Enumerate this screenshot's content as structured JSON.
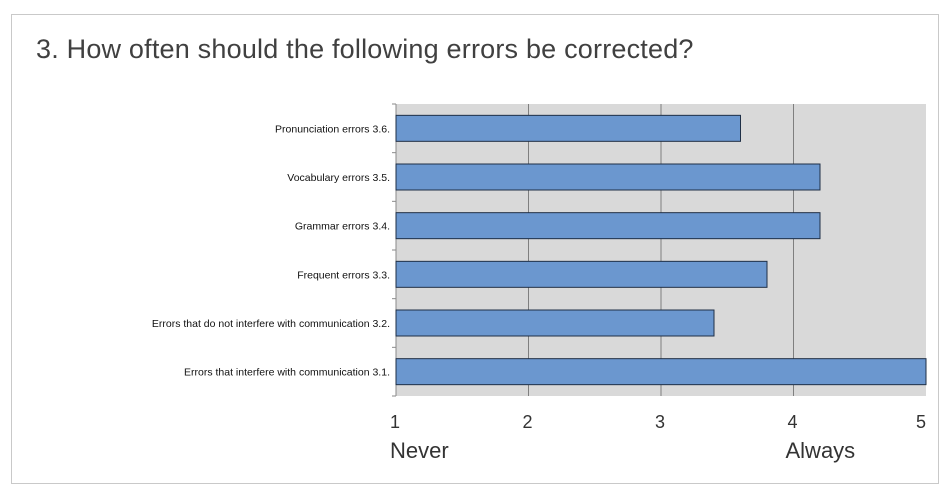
{
  "chart_data": {
    "type": "bar",
    "orientation": "horizontal",
    "title": "3. How often should the following errors be corrected?",
    "categories": [
      "Pronunciation errors  3.6.",
      "Vocabulary errors     3.5.",
      "Grammar errors        3.4.",
      "Frequent errors       3.3.",
      "Errors that do not interfere with communication  3.2.",
      "Errors that interfere with communication  3.1."
    ],
    "values": [
      3.6,
      4.2,
      4.2,
      3.8,
      3.4,
      5.0
    ],
    "xlim": [
      1,
      5
    ],
    "xticks": [
      "1",
      "2",
      "3",
      "4",
      "5"
    ],
    "x_end_labels": {
      "min": "Never",
      "max": "Always"
    },
    "grid": true,
    "legend": "none",
    "colors": {
      "bar": "#6b97cf",
      "bar_edge": "#1f2f46",
      "plot_bg": "#d9d9d9",
      "grid": "#7f7f7f",
      "title": "#404040"
    }
  }
}
